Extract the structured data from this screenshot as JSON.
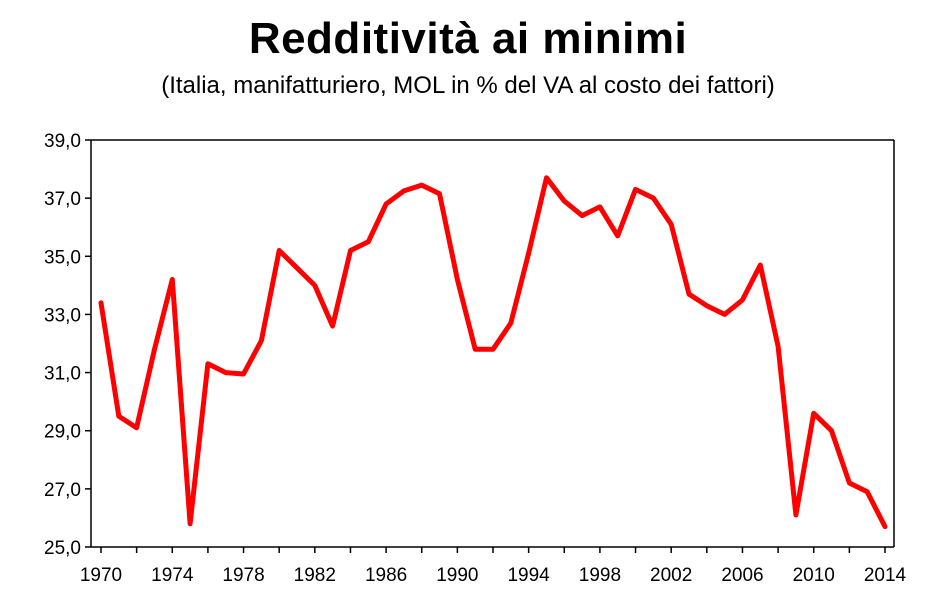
{
  "chart_data": {
    "type": "line",
    "title": "Redditività ai minimi",
    "subtitle": "(Italia, manifatturiero, MOL in % del VA al costo dei fattori)",
    "xlabel": "",
    "ylabel": "",
    "ylim": [
      25.0,
      39.0
    ],
    "xlim": [
      1970,
      2014
    ],
    "y_ticks": [
      "25,0",
      "27,0",
      "29,0",
      "31,0",
      "33,0",
      "35,0",
      "37,0",
      "39,0"
    ],
    "x_ticks": [
      "1970",
      "1974",
      "1978",
      "1982",
      "1986",
      "1990",
      "1994",
      "1998",
      "2002",
      "2006",
      "2010",
      "2014"
    ],
    "grid": false,
    "legend": "none",
    "line_color": "#ff0000",
    "series": [
      {
        "x": [
          1970,
          1971,
          1972,
          1973,
          1974,
          1975,
          1976,
          1977,
          1978,
          1979,
          1980,
          1981,
          1982,
          1983,
          1984,
          1985,
          1986,
          1987,
          1988,
          1989,
          1990,
          1991,
          1992,
          1993,
          1994,
          1995,
          1996,
          1997,
          1998,
          1999,
          2000,
          2001,
          2002,
          2003,
          2004,
          2005,
          2006,
          2007,
          2008,
          2009,
          2010,
          2011,
          2012,
          2013,
          2014
        ],
        "values": [
          33.4,
          29.5,
          29.1,
          31.8,
          34.2,
          25.8,
          31.3,
          31.0,
          30.95,
          32.1,
          35.2,
          34.6,
          34.0,
          32.6,
          35.2,
          35.5,
          36.8,
          37.25,
          37.45,
          37.15,
          34.2,
          31.8,
          31.8,
          32.7,
          35.1,
          37.7,
          36.9,
          36.4,
          36.7,
          35.7,
          37.3,
          37.0,
          36.1,
          33.7,
          33.3,
          33.0,
          33.5,
          34.7,
          31.9,
          26.1,
          29.6,
          29.0,
          27.2,
          26.9,
          25.7
        ]
      }
    ]
  }
}
